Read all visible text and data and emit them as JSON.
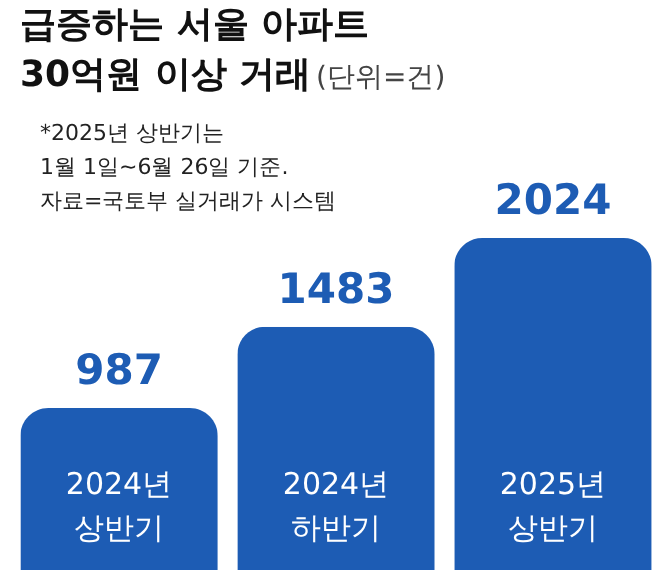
{
  "chart_data": {
    "type": "bar",
    "title": "급증하는 서울 아파트\n30억원 이상 거래",
    "subtitle": "(단위=건)",
    "annotations": [
      "*2025년 상반기는\n1월 1일~6월 26일 기준.\n자료=국토부 실거래가 시스템"
    ],
    "categories": [
      "2024년 상반기",
      "2024년 하반기",
      "2025년 상반기"
    ],
    "values": [
      987,
      1483,
      2024
    ],
    "color": "#1d5cb4",
    "data_labels": true,
    "grid": false
  }
}
